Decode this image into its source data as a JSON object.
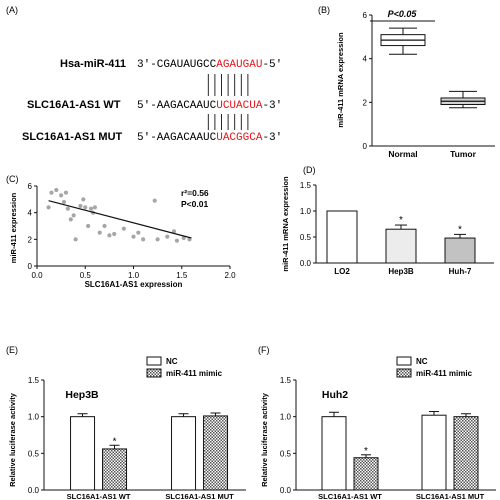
{
  "panels": {
    "A": {
      "letter": "(A)",
      "rows": [
        {
          "name": "Hsa-miR-411",
          "seq_prefix": "3'-CGAUAUGCC",
          "seq_highlight": "AGAUGAU",
          "seq_suffix": "-5'"
        },
        {
          "name": "SLC16A1-AS1 WT",
          "seq_prefix": "5'-AAGACAAUC",
          "seq_highlight": "UCUACUA",
          "seq_suffix": "-3'"
        },
        {
          "name": "SLC16A1-AS1 MUT",
          "seq_prefix": "5'-AAGACAAUC",
          "seq_highlight": "UACGGCA",
          "seq_suffix": "-3'"
        }
      ],
      "highlight_color": "#e8141b"
    },
    "B": {
      "letter": "(B)",
      "significance": "P<0.05"
    },
    "C": {
      "letter": "(C)",
      "stat_r2": "r²=0.56",
      "stat_p": "P<0.01"
    },
    "D": {
      "letter": "(D)",
      "star": "*"
    },
    "E": {
      "letter": "(E)",
      "title": "Hep3B",
      "star": "*"
    },
    "F": {
      "letter": "(F)",
      "title": "Huh2",
      "star": "*"
    }
  },
  "chart_data": [
    {
      "panel": "B",
      "type": "box",
      "categories": [
        "Normal",
        "Tumor"
      ],
      "ylabel": "miR-411 mRNA expression",
      "ylim": [
        0,
        6
      ],
      "yticks": [
        0,
        2,
        4,
        6
      ],
      "boxes": [
        {
          "min": 4.2,
          "q1": 4.6,
          "median": 4.85,
          "q3": 5.1,
          "max": 5.4,
          "fill": "#ffffff"
        },
        {
          "min": 1.75,
          "q1": 1.9,
          "median": 2.05,
          "q3": 2.2,
          "max": 2.5,
          "fill": "#d4d4d4"
        }
      ]
    },
    {
      "panel": "C",
      "type": "scatter",
      "xlabel": "SLC16A1-AS1 expression",
      "ylabel": "miR-411 expression",
      "xlim": [
        0,
        2.0
      ],
      "ylim": [
        0,
        6
      ],
      "xticks": [
        "0.0",
        "0.5",
        "1.0",
        "1.5",
        "2.0"
      ],
      "yticks": [
        0,
        2,
        4,
        6
      ],
      "points": [
        [
          0.12,
          4.4
        ],
        [
          0.15,
          5.5
        ],
        [
          0.2,
          5.7
        ],
        [
          0.25,
          5.3
        ],
        [
          0.28,
          4.8
        ],
        [
          0.3,
          5.5
        ],
        [
          0.32,
          4.3
        ],
        [
          0.35,
          3.5
        ],
        [
          0.38,
          3.8
        ],
        [
          0.4,
          2.0
        ],
        [
          0.45,
          4.5
        ],
        [
          0.48,
          5.0
        ],
        [
          0.5,
          4.4
        ],
        [
          0.53,
          3.0
        ],
        [
          0.56,
          4.3
        ],
        [
          0.58,
          4.0
        ],
        [
          0.6,
          4.4
        ],
        [
          0.65,
          2.5
        ],
        [
          0.7,
          3.0
        ],
        [
          0.75,
          2.3
        ],
        [
          0.8,
          2.4
        ],
        [
          0.9,
          2.8
        ],
        [
          1.0,
          2.2
        ],
        [
          1.05,
          2.5
        ],
        [
          1.1,
          2.0
        ],
        [
          1.22,
          4.9
        ],
        [
          1.25,
          2.0
        ],
        [
          1.35,
          2.2
        ],
        [
          1.42,
          2.6
        ],
        [
          1.45,
          1.9
        ],
        [
          1.52,
          2.1
        ],
        [
          1.58,
          2.0
        ]
      ],
      "fit": {
        "x": [
          0.12,
          1.6
        ],
        "y": [
          4.9,
          2.1
        ]
      }
    },
    {
      "panel": "D",
      "type": "bar",
      "categories": [
        "LO2",
        "Hep3B",
        "Huh-7"
      ],
      "values": [
        1.0,
        0.65,
        0.48
      ],
      "errors": [
        0,
        0.08,
        0.07
      ],
      "colors": [
        "#ffffff",
        "#ececec",
        "#c2c2c2"
      ],
      "significant": [
        false,
        true,
        true
      ],
      "ylabel": "miR-411 mRNA expression",
      "ylim": [
        0,
        1.5
      ],
      "yticks": [
        "0.0",
        "0.5",
        "1.0",
        "1.5"
      ]
    },
    {
      "panel": "E",
      "type": "bar",
      "categories": [
        "SLC16A1-AS1 WT",
        "SLC16A1-AS1 MUT"
      ],
      "series": [
        {
          "name": "NC",
          "values": [
            1.0,
            1.0
          ],
          "errors": [
            0.04,
            0.04
          ]
        },
        {
          "name": "miR-411 mimic",
          "values": [
            0.56,
            1.01
          ],
          "errors": [
            0.05,
            0.04
          ]
        }
      ],
      "significant": [
        [
          false,
          true
        ],
        [
          false,
          false
        ]
      ],
      "ylabel": "Relative luciferase activity",
      "ylim": [
        0,
        1.5
      ],
      "yticks": [
        "0.0",
        "0.5",
        "1.0",
        "1.5"
      ]
    },
    {
      "panel": "F",
      "type": "bar",
      "categories": [
        "SLC16A1-AS1 WT",
        "SLC16A1-AS1 MUT"
      ],
      "series": [
        {
          "name": "NC",
          "values": [
            1.0,
            1.02
          ],
          "errors": [
            0.06,
            0.05
          ]
        },
        {
          "name": "miR-411 mimic",
          "values": [
            0.44,
            1.0
          ],
          "errors": [
            0.04,
            0.04
          ]
        }
      ],
      "significant": [
        [
          false,
          true
        ],
        [
          false,
          false
        ]
      ],
      "ylabel": "Relative luciferase activity",
      "ylim": [
        0,
        1.5
      ],
      "yticks": [
        "0.0",
        "0.5",
        "1.0",
        "1.5"
      ]
    }
  ]
}
